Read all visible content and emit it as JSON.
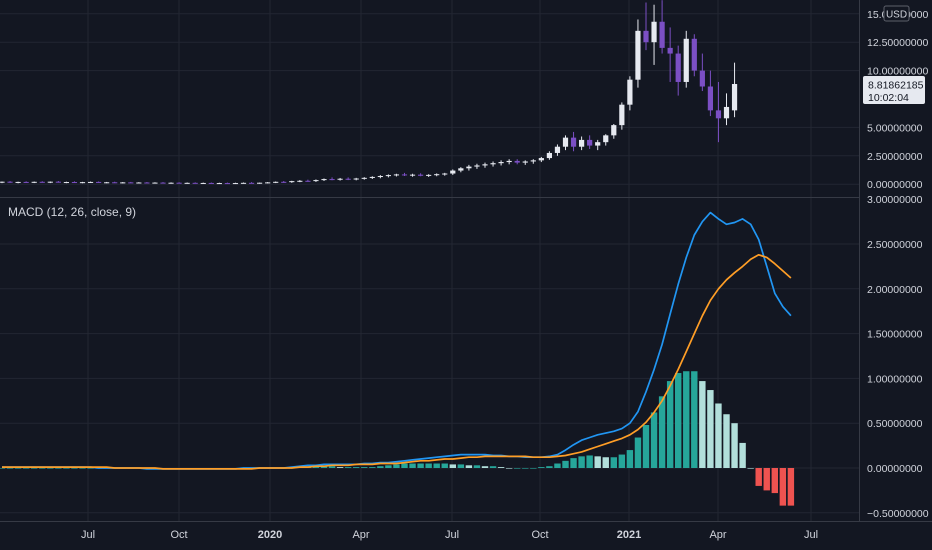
{
  "colors": {
    "background": "#131722",
    "grid": "#232733",
    "axis_text": "#d1d4dc",
    "candle_up": "#e6e9f0",
    "candle_down": "#7b4fc4",
    "macd_line": "#2196f3",
    "signal_line": "#ff9e26",
    "hist_pos_strong": "#26a69a",
    "hist_pos_weak": "#b2dfdb",
    "hist_neg_strong": "#ef5350",
    "hist_neg_weak": "#ffcdd2",
    "price_tag_bg": "#e6e9f0",
    "price_tag_text": "#131722"
  },
  "price_pane": {
    "currency": "USD",
    "last_price": "8.81862185",
    "countdown": "10:02:04"
  },
  "macd_pane": {
    "legend": "MACD (12, 26, close, 9)"
  },
  "chart_data": [
    {
      "type": "candlestick",
      "xlabel": "",
      "ylabel": "",
      "x_ticks": [
        "Jul",
        "Oct",
        "2020",
        "Apr",
        "Jul",
        "Oct",
        "2021",
        "Apr",
        "Jul"
      ],
      "y_ticks": [
        "15.00000000",
        "12.50000000",
        "10.00000000",
        "5.00000000",
        "2.50000000",
        "0.00000000"
      ],
      "ylim": [
        -0.6,
        15.6
      ],
      "grid": true,
      "candles": [
        {
          "o": 0.16,
          "h": 0.24,
          "l": 0.1,
          "c": 0.22
        },
        {
          "o": 0.22,
          "h": 0.27,
          "l": 0.12,
          "c": 0.17
        },
        {
          "o": 0.17,
          "h": 0.22,
          "l": 0.08,
          "c": 0.2
        },
        {
          "o": 0.2,
          "h": 0.25,
          "l": 0.12,
          "c": 0.15
        },
        {
          "o": 0.15,
          "h": 0.23,
          "l": 0.1,
          "c": 0.21
        },
        {
          "o": 0.21,
          "h": 0.26,
          "l": 0.13,
          "c": 0.18
        },
        {
          "o": 0.18,
          "h": 0.24,
          "l": 0.1,
          "c": 0.22
        },
        {
          "o": 0.22,
          "h": 0.28,
          "l": 0.14,
          "c": 0.16
        },
        {
          "o": 0.16,
          "h": 0.22,
          "l": 0.09,
          "c": 0.19
        },
        {
          "o": 0.19,
          "h": 0.25,
          "l": 0.11,
          "c": 0.14
        },
        {
          "o": 0.14,
          "h": 0.21,
          "l": 0.08,
          "c": 0.18
        },
        {
          "o": 0.18,
          "h": 0.23,
          "l": 0.11,
          "c": 0.2
        },
        {
          "o": 0.2,
          "h": 0.24,
          "l": 0.12,
          "c": 0.15
        },
        {
          "o": 0.15,
          "h": 0.2,
          "l": 0.09,
          "c": 0.17
        },
        {
          "o": 0.17,
          "h": 0.22,
          "l": 0.1,
          "c": 0.13
        },
        {
          "o": 0.13,
          "h": 0.19,
          "l": 0.07,
          "c": 0.16
        },
        {
          "o": 0.16,
          "h": 0.2,
          "l": 0.1,
          "c": 0.12
        },
        {
          "o": 0.12,
          "h": 0.18,
          "l": 0.07,
          "c": 0.15
        },
        {
          "o": 0.15,
          "h": 0.19,
          "l": 0.09,
          "c": 0.11
        },
        {
          "o": 0.11,
          "h": 0.17,
          "l": 0.06,
          "c": 0.14
        },
        {
          "o": 0.14,
          "h": 0.18,
          "l": 0.08,
          "c": 0.1
        },
        {
          "o": 0.1,
          "h": 0.16,
          "l": 0.05,
          "c": 0.13
        },
        {
          "o": 0.13,
          "h": 0.17,
          "l": 0.08,
          "c": 0.09
        },
        {
          "o": 0.09,
          "h": 0.15,
          "l": 0.05,
          "c": 0.12
        },
        {
          "o": 0.12,
          "h": 0.16,
          "l": 0.07,
          "c": 0.08
        },
        {
          "o": 0.08,
          "h": 0.14,
          "l": 0.04,
          "c": 0.11
        },
        {
          "o": 0.11,
          "h": 0.15,
          "l": 0.06,
          "c": 0.07
        },
        {
          "o": 0.07,
          "h": 0.13,
          "l": 0.03,
          "c": 0.1
        },
        {
          "o": 0.1,
          "h": 0.14,
          "l": 0.05,
          "c": 0.08
        },
        {
          "o": 0.08,
          "h": 0.13,
          "l": 0.03,
          "c": 0.1
        },
        {
          "o": 0.1,
          "h": 0.15,
          "l": 0.05,
          "c": 0.12
        },
        {
          "o": 0.12,
          "h": 0.18,
          "l": 0.06,
          "c": 0.09
        },
        {
          "o": 0.09,
          "h": 0.14,
          "l": 0.04,
          "c": 0.13
        },
        {
          "o": 0.13,
          "h": 0.19,
          "l": 0.07,
          "c": 0.16
        },
        {
          "o": 0.16,
          "h": 0.24,
          "l": 0.1,
          "c": 0.21
        },
        {
          "o": 0.21,
          "h": 0.28,
          "l": 0.12,
          "c": 0.18
        },
        {
          "o": 0.18,
          "h": 0.3,
          "l": 0.12,
          "c": 0.27
        },
        {
          "o": 0.27,
          "h": 0.36,
          "l": 0.18,
          "c": 0.3
        },
        {
          "o": 0.3,
          "h": 0.4,
          "l": 0.22,
          "c": 0.28
        },
        {
          "o": 0.28,
          "h": 0.42,
          "l": 0.2,
          "c": 0.36
        },
        {
          "o": 0.36,
          "h": 0.5,
          "l": 0.28,
          "c": 0.45
        },
        {
          "o": 0.45,
          "h": 0.6,
          "l": 0.35,
          "c": 0.4
        },
        {
          "o": 0.4,
          "h": 0.55,
          "l": 0.32,
          "c": 0.48
        },
        {
          "o": 0.48,
          "h": 0.6,
          "l": 0.36,
          "c": 0.42
        },
        {
          "o": 0.42,
          "h": 0.56,
          "l": 0.34,
          "c": 0.5
        },
        {
          "o": 0.5,
          "h": 0.62,
          "l": 0.4,
          "c": 0.56
        },
        {
          "o": 0.56,
          "h": 0.7,
          "l": 0.46,
          "c": 0.64
        },
        {
          "o": 0.64,
          "h": 0.8,
          "l": 0.52,
          "c": 0.72
        },
        {
          "o": 0.72,
          "h": 0.86,
          "l": 0.6,
          "c": 0.8
        },
        {
          "o": 0.8,
          "h": 0.92,
          "l": 0.68,
          "c": 0.86
        },
        {
          "o": 0.86,
          "h": 1.0,
          "l": 0.72,
          "c": 0.78
        },
        {
          "o": 0.78,
          "h": 0.92,
          "l": 0.66,
          "c": 0.84
        },
        {
          "o": 0.84,
          "h": 0.96,
          "l": 0.7,
          "c": 0.74
        },
        {
          "o": 0.74,
          "h": 0.88,
          "l": 0.64,
          "c": 0.82
        },
        {
          "o": 0.82,
          "h": 0.95,
          "l": 0.7,
          "c": 0.88
        },
        {
          "o": 0.88,
          "h": 1.0,
          "l": 0.75,
          "c": 0.94
        },
        {
          "o": 0.94,
          "h": 1.3,
          "l": 0.82,
          "c": 1.2
        },
        {
          "o": 1.2,
          "h": 1.5,
          "l": 1.05,
          "c": 1.4
        },
        {
          "o": 1.4,
          "h": 1.7,
          "l": 1.2,
          "c": 1.55
        },
        {
          "o": 1.55,
          "h": 1.8,
          "l": 1.35,
          "c": 1.65
        },
        {
          "o": 1.65,
          "h": 1.9,
          "l": 1.45,
          "c": 1.75
        },
        {
          "o": 1.75,
          "h": 2.0,
          "l": 1.55,
          "c": 1.85
        },
        {
          "o": 1.85,
          "h": 2.1,
          "l": 1.65,
          "c": 1.95
        },
        {
          "o": 1.95,
          "h": 2.2,
          "l": 1.75,
          "c": 2.05
        },
        {
          "o": 2.05,
          "h": 2.2,
          "l": 1.75,
          "c": 1.9
        },
        {
          "o": 1.9,
          "h": 2.1,
          "l": 1.7,
          "c": 2.0
        },
        {
          "o": 2.0,
          "h": 2.2,
          "l": 1.8,
          "c": 2.1
        },
        {
          "o": 2.1,
          "h": 2.4,
          "l": 1.95,
          "c": 2.3
        },
        {
          "o": 2.3,
          "h": 2.9,
          "l": 2.15,
          "c": 2.75
        },
        {
          "o": 2.75,
          "h": 3.5,
          "l": 2.5,
          "c": 3.3
        },
        {
          "o": 3.3,
          "h": 4.3,
          "l": 3.0,
          "c": 4.1
        },
        {
          "o": 4.1,
          "h": 4.6,
          "l": 2.9,
          "c": 3.3
        },
        {
          "o": 3.3,
          "h": 4.2,
          "l": 3.0,
          "c": 3.9
        },
        {
          "o": 3.9,
          "h": 4.3,
          "l": 3.1,
          "c": 3.4
        },
        {
          "o": 3.4,
          "h": 3.9,
          "l": 3.0,
          "c": 3.7
        },
        {
          "o": 3.7,
          "h": 4.4,
          "l": 3.4,
          "c": 4.3
        },
        {
          "o": 4.3,
          "h": 5.3,
          "l": 4.0,
          "c": 5.2
        },
        {
          "o": 5.2,
          "h": 7.2,
          "l": 4.8,
          "c": 7.0
        },
        {
          "o": 7.0,
          "h": 9.5,
          "l": 6.5,
          "c": 9.2
        },
        {
          "o": 9.2,
          "h": 14.5,
          "l": 8.5,
          "c": 13.5
        },
        {
          "o": 13.5,
          "h": 16.0,
          "l": 11.8,
          "c": 12.5
        },
        {
          "o": 12.5,
          "h": 15.8,
          "l": 10.5,
          "c": 14.3
        },
        {
          "o": 14.3,
          "h": 16.2,
          "l": 11.5,
          "c": 12.0
        },
        {
          "o": 12.0,
          "h": 13.8,
          "l": 9.0,
          "c": 11.5
        },
        {
          "o": 11.5,
          "h": 12.2,
          "l": 7.8,
          "c": 9.0
        },
        {
          "o": 9.0,
          "h": 13.5,
          "l": 8.5,
          "c": 12.8
        },
        {
          "o": 12.8,
          "h": 13.2,
          "l": 9.5,
          "c": 10.0
        },
        {
          "o": 10.0,
          "h": 11.5,
          "l": 8.2,
          "c": 8.6
        },
        {
          "o": 8.6,
          "h": 10.0,
          "l": 6.0,
          "c": 6.5
        },
        {
          "o": 6.5,
          "h": 9.0,
          "l": 3.7,
          "c": 5.8
        },
        {
          "o": 5.8,
          "h": 8.0,
          "l": 5.2,
          "c": 6.8
        },
        {
          "o": 6.5,
          "h": 10.7,
          "l": 5.9,
          "c": 8.82
        }
      ]
    },
    {
      "type": "line",
      "title": "MACD (12, 26, close, 9)",
      "xlabel": "",
      "ylabel": "",
      "y_ticks": [
        "3.00000000",
        "2.50000000",
        "2.00000000",
        "1.50000000",
        "1.00000000",
        "0.50000000",
        "0.00000000",
        "−0.50000000"
      ],
      "ylim": [
        -0.58,
        3.0
      ],
      "grid": true,
      "series": [
        {
          "values": [
            0.01,
            0.01,
            0.01,
            0.01,
            0.01,
            0.01,
            0.01,
            0.01,
            0.01,
            0.01,
            0.01,
            0.01,
            0.0,
            0.0,
            0.0,
            0.0,
            0.0,
            0.0,
            -0.01,
            -0.01,
            -0.01,
            -0.01,
            -0.01,
            -0.01,
            -0.01,
            -0.01,
            -0.01,
            -0.01,
            -0.01,
            -0.01,
            0.0,
            0.0,
            0.0,
            0.0,
            0.0,
            0.0,
            0.01,
            0.02,
            0.03,
            0.03,
            0.04,
            0.04,
            0.04,
            0.04,
            0.04,
            0.05,
            0.05,
            0.06,
            0.06,
            0.07,
            0.08,
            0.09,
            0.1,
            0.11,
            0.12,
            0.13,
            0.14,
            0.15,
            0.15,
            0.15,
            0.15,
            0.14,
            0.14,
            0.13,
            0.13,
            0.12,
            0.12,
            0.12,
            0.13,
            0.15,
            0.2,
            0.26,
            0.31,
            0.34,
            0.37,
            0.39,
            0.41,
            0.44,
            0.5,
            0.63,
            0.85,
            1.1,
            1.38,
            1.72,
            2.05,
            2.35,
            2.6,
            2.75,
            2.85,
            2.78,
            2.72,
            2.74,
            2.78,
            2.72,
            2.55,
            2.25,
            1.95,
            1.8,
            1.7
          ]
        },
        {
          "values": [
            0.01,
            0.01,
            0.01,
            0.01,
            0.01,
            0.01,
            0.01,
            0.01,
            0.01,
            0.01,
            0.01,
            0.01,
            0.01,
            0.01,
            0.0,
            0.0,
            0.0,
            0.0,
            0.0,
            0.0,
            -0.01,
            -0.01,
            -0.01,
            -0.01,
            -0.01,
            -0.01,
            -0.01,
            -0.01,
            -0.01,
            -0.01,
            -0.01,
            -0.01,
            0.0,
            0.0,
            0.0,
            0.0,
            0.0,
            0.01,
            0.01,
            0.02,
            0.02,
            0.03,
            0.03,
            0.03,
            0.04,
            0.04,
            0.04,
            0.05,
            0.05,
            0.05,
            0.06,
            0.07,
            0.08,
            0.08,
            0.09,
            0.1,
            0.1,
            0.11,
            0.12,
            0.12,
            0.13,
            0.13,
            0.13,
            0.13,
            0.13,
            0.13,
            0.12,
            0.12,
            0.12,
            0.13,
            0.14,
            0.16,
            0.18,
            0.21,
            0.24,
            0.27,
            0.3,
            0.33,
            0.37,
            0.43,
            0.51,
            0.62,
            0.75,
            0.92,
            1.1,
            1.3,
            1.5,
            1.7,
            1.87,
            2.0,
            2.1,
            2.18,
            2.25,
            2.33,
            2.38,
            2.35,
            2.28,
            2.2,
            2.12
          ]
        }
      ],
      "histogram": [
        0.0,
        0.0,
        0.0,
        0.0,
        0.0,
        0.0,
        0.0,
        0.0,
        0.0,
        0.0,
        0.0,
        0.0,
        0.0,
        0.0,
        0.0,
        0.0,
        0.0,
        0.0,
        0.0,
        0.0,
        0.0,
        0.0,
        0.0,
        0.0,
        0.0,
        0.0,
        0.0,
        0.0,
        0.0,
        0.0,
        0.0,
        0.0,
        0.0,
        0.0,
        0.0,
        0.0,
        0.01,
        0.02,
        0.02,
        0.02,
        0.02,
        0.02,
        0.01,
        0.01,
        0.01,
        0.01,
        0.01,
        0.02,
        0.03,
        0.04,
        0.05,
        0.05,
        0.05,
        0.05,
        0.05,
        0.05,
        0.04,
        0.04,
        0.03,
        0.03,
        0.02,
        0.02,
        0.01,
        0.0,
        0.0,
        0.0,
        0.0,
        0.01,
        0.02,
        0.05,
        0.08,
        0.11,
        0.13,
        0.14,
        0.13,
        0.12,
        0.12,
        0.15,
        0.2,
        0.34,
        0.48,
        0.62,
        0.8,
        0.97,
        1.06,
        1.08,
        1.08,
        0.97,
        0.87,
        0.72,
        0.6,
        0.5,
        0.28,
        0.0,
        -0.2,
        -0.25,
        -0.28,
        -0.42,
        -0.42
      ]
    }
  ]
}
